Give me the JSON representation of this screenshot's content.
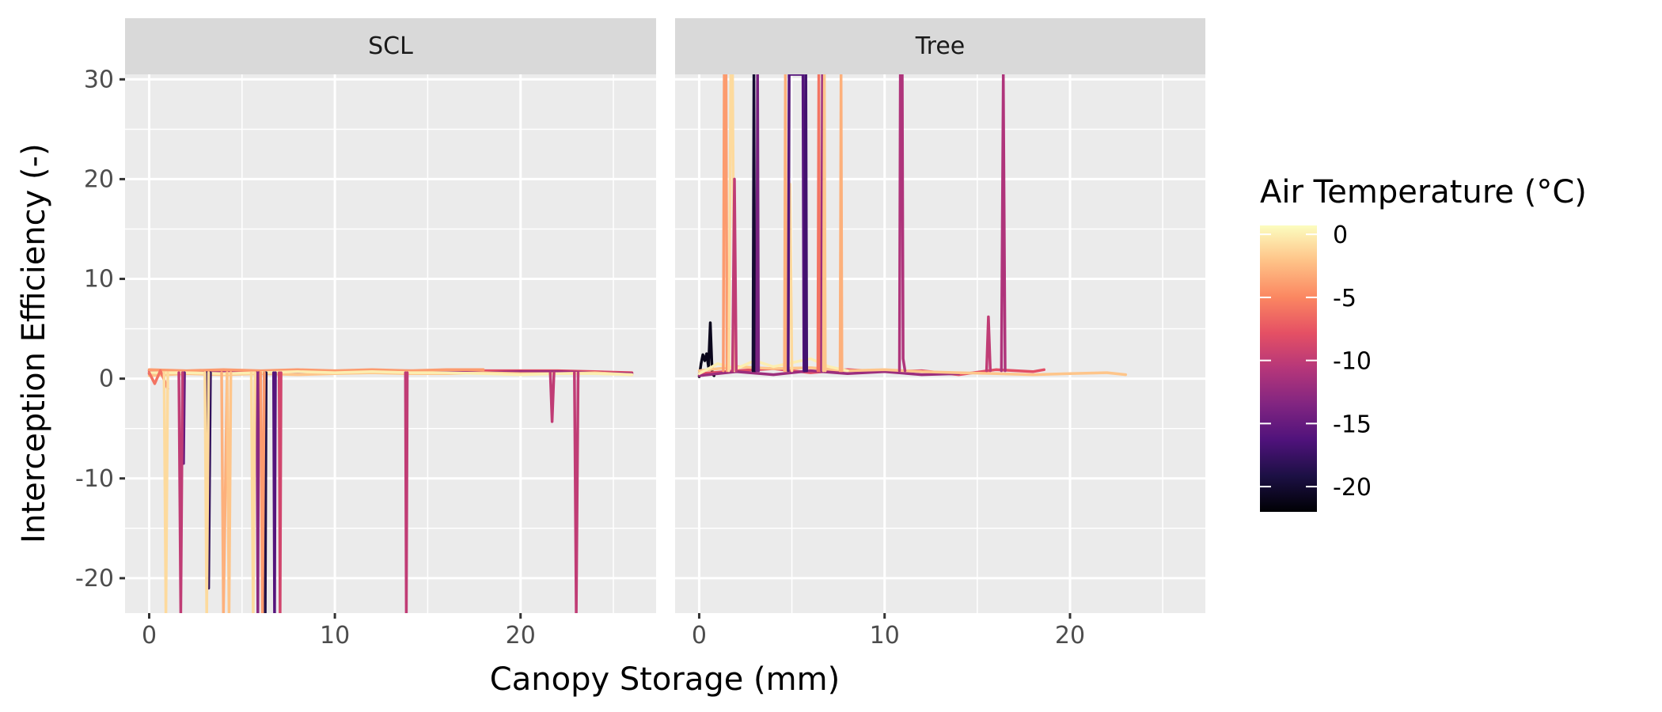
{
  "chart_data": {
    "type": "line",
    "xlabel": "Canopy Storage (mm)",
    "ylabel": "Interception Efficiency (-)",
    "xlim": [
      -1.3,
      27.3
    ],
    "ylim": [
      -23.5,
      30.5
    ],
    "x_ticks": [
      0,
      10,
      20
    ],
    "x_tick_labels": [
      "0",
      "10",
      "20"
    ],
    "y_ticks": [
      -20,
      -10,
      0,
      10,
      20,
      30
    ],
    "y_tick_labels": [
      "-20",
      "-10",
      "0",
      "10",
      "20",
      "30"
    ],
    "grid": true,
    "panel_background": "#ebebeb",
    "strip_background": "#d9d9d9",
    "legend": {
      "title": "Air Temperature (°C)",
      "placement": "right",
      "type": "colorbar",
      "palette": "magma",
      "limits": [
        -22,
        0.7
      ],
      "breaks": [
        0,
        -5,
        -10,
        -15,
        -20
      ],
      "break_labels": [
        "0",
        "-5",
        "-10",
        "-15",
        "-20"
      ]
    },
    "panels": [
      {
        "label": "SCL",
        "series": [
          {
            "temp": -8,
            "x": [
              0,
              2,
              4,
              6,
              8,
              10,
              12,
              14,
              16,
              18,
              20,
              22,
              24,
              26
            ],
            "y": [
              0.8,
              0.7,
              0.8,
              0.7,
              0.8,
              0.7,
              0.8,
              0.8,
              0.7,
              0.8,
              0.8,
              0.8,
              0.7,
              0.6
            ]
          },
          {
            "temp": -12,
            "x": [
              0,
              2,
              4,
              6,
              8,
              10,
              12,
              14,
              16,
              18,
              20,
              22,
              24,
              26
            ],
            "y": [
              0.5,
              0.6,
              0.6,
              0.5,
              0.6,
              0.7,
              0.6,
              0.6,
              0.7,
              0.6,
              0.7,
              0.7,
              0.6,
              0.5
            ]
          },
          {
            "temp": -4,
            "x": [
              0,
              2,
              4,
              6,
              8,
              10,
              12,
              14,
              16,
              18
            ],
            "y": [
              0.9,
              0.8,
              0.9,
              0.8,
              0.9,
              0.8,
              0.9,
              0.8,
              0.9,
              0.9
            ]
          },
          {
            "temp": -2,
            "x": [
              0,
              2,
              4,
              6,
              8,
              10,
              12,
              14,
              16,
              18,
              20,
              22,
              24,
              26
            ],
            "y": [
              0.3,
              0.5,
              0.4,
              0.5,
              0.4,
              0.5,
              0.6,
              0.5,
              0.5,
              0.6,
              0.5,
              0.5,
              0.6,
              0.4
            ]
          },
          {
            "temp": 0,
            "x": [
              0,
              2,
              4,
              6,
              8,
              10,
              12,
              14,
              16,
              18,
              20,
              22,
              24,
              26
            ],
            "y": [
              0.6,
              0.6,
              0.5,
              0.6,
              0.7,
              0.6,
              0.7,
              0.6,
              0.6,
              0.5,
              0.4,
              0.5,
              0.5,
              0.4
            ]
          },
          {
            "temp": -6,
            "x": [
              0,
              0.3,
              0.6,
              1
            ],
            "y": [
              0.6,
              -0.5,
              0.8,
              -1
            ]
          },
          {
            "temp": -15,
            "x": [
              1.8,
              1.85,
              1.9
            ],
            "y": [
              0.6,
              -8.5,
              0.6
            ]
          },
          {
            "temp": -10,
            "x": [
              1.6,
              1.7,
              1.8
            ],
            "y": [
              0.6,
              -23.5,
              0.6
            ]
          },
          {
            "temp": -18,
            "x": [
              3.1,
              3.2,
              3.3
            ],
            "y": [
              0.6,
              -21,
              0.6
            ]
          },
          {
            "temp": -13,
            "x": [
              5.8,
              5.85,
              5.9
            ],
            "y": [
              0.6,
              -23.5,
              0.6
            ]
          },
          {
            "temp": -19,
            "x": [
              6.2,
              6.25,
              6.3
            ],
            "y": [
              0.6,
              -23.5,
              0.6
            ]
          },
          {
            "temp": -16,
            "x": [
              6.7,
              6.75,
              6.8
            ],
            "y": [
              0.6,
              -23.5,
              0.6
            ]
          },
          {
            "temp": -9,
            "x": [
              7.0,
              7.05,
              7.1
            ],
            "y": [
              0.6,
              -23.5,
              0.6
            ]
          },
          {
            "temp": -10,
            "x": [
              13.8,
              13.85,
              13.9
            ],
            "y": [
              0.6,
              -23.5,
              0.6
            ]
          },
          {
            "temp": -10,
            "x": [
              21.6,
              21.7,
              21.8
            ],
            "y": [
              0.6,
              -4.3,
              0.6
            ]
          },
          {
            "temp": -10,
            "x": [
              22.9,
              23.0,
              23.1
            ],
            "y": [
              0.6,
              -23.5,
              0.6
            ]
          },
          {
            "temp": -1,
            "x": [
              0.8,
              0.9,
              1.0
            ],
            "y": [
              0.6,
              -23.5,
              0.6
            ]
          },
          {
            "temp": -1,
            "x": [
              3.0,
              3.1,
              3.2
            ],
            "y": [
              0.6,
              -23.5,
              0.6
            ]
          },
          {
            "temp": -3,
            "x": [
              3.9,
              4.0,
              4.2
            ],
            "y": [
              0.6,
              -23.5,
              0.6
            ]
          },
          {
            "temp": -2,
            "x": [
              4.2,
              4.3,
              4.4
            ],
            "y": [
              0.6,
              -23.5,
              0.6
            ]
          },
          {
            "temp": -1,
            "x": [
              5.5,
              5.6,
              5.7
            ],
            "y": [
              0.6,
              -23.5,
              0.6
            ]
          },
          {
            "temp": -4,
            "x": [
              6.0,
              6.1,
              6.2
            ],
            "y": [
              0.6,
              -23.5,
              0.6
            ]
          }
        ]
      },
      {
        "label": "Tree",
        "series": [
          {
            "temp": -21,
            "x": [
              0,
              0.1,
              0.2,
              0.3,
              0.4,
              0.5,
              0.6,
              0.7,
              0.8
            ],
            "y": [
              0.2,
              1.5,
              2.4,
              1.8,
              2.5,
              1.2,
              5.6,
              0.5,
              0.3
            ]
          },
          {
            "temp": -8,
            "x": [
              0,
              2,
              4,
              6,
              8,
              10,
              12,
              14,
              16,
              18,
              18.6
            ],
            "y": [
              0.5,
              0.8,
              1.0,
              0.6,
              0.9,
              0.7,
              0.8,
              0.4,
              0.9,
              0.7,
              0.9
            ]
          },
          {
            "temp": -12,
            "x": [
              0,
              2,
              4,
              6,
              8,
              10,
              12,
              14
            ],
            "y": [
              0.3,
              0.7,
              0.4,
              0.8,
              0.5,
              0.7,
              0.4,
              0.5
            ]
          },
          {
            "temp": -2,
            "x": [
              0,
              2,
              4,
              6,
              8,
              10,
              12,
              14,
              16,
              18,
              20,
              22,
              23
            ],
            "y": [
              0.8,
              1.2,
              1.0,
              1.1,
              0.8,
              0.9,
              0.7,
              0.6,
              0.5,
              0.4,
              0.5,
              0.6,
              0.4
            ]
          },
          {
            "temp": 0,
            "x": [
              0,
              1,
              2,
              3,
              4,
              5,
              6,
              7,
              8
            ],
            "y": [
              0.5,
              1.5,
              1.0,
              1.8,
              1.2,
              1.6,
              2.0,
              1.2,
              0.8
            ]
          },
          {
            "temp": -4,
            "x": [
              1.3,
              1.35,
              1.45,
              1.5
            ],
            "y": [
              0.8,
              30.5,
              30.5,
              0.8
            ]
          },
          {
            "temp": -1,
            "x": [
              1.6,
              1.7,
              1.8,
              1.9
            ],
            "y": [
              0.8,
              30.5,
              30.5,
              0.8
            ]
          },
          {
            "temp": -10,
            "x": [
              1.8,
              1.9,
              2.0
            ],
            "y": [
              0.8,
              20.0,
              0.8
            ]
          },
          {
            "temp": -20,
            "x": [
              2.9,
              2.95,
              3.0
            ],
            "y": [
              0.8,
              30.5,
              0.8
            ]
          },
          {
            "temp": -14,
            "x": [
              3.1,
              3.15,
              3.2
            ],
            "y": [
              0.8,
              30.5,
              0.8
            ]
          },
          {
            "temp": -3,
            "x": [
              4.6,
              4.65,
              4.7
            ],
            "y": [
              0.8,
              30.5,
              0.8
            ]
          },
          {
            "temp": -1,
            "x": [
              4.8,
              4.9,
              5.0
            ],
            "y": [
              0.8,
              19.5,
              0.8
            ]
          },
          {
            "temp": -16,
            "x": [
              4.8,
              4.85,
              5.6,
              5.65
            ],
            "y": [
              0.8,
              30.5,
              30.5,
              0.8
            ]
          },
          {
            "temp": -17,
            "x": [
              5.7,
              5.75,
              5.8
            ],
            "y": [
              0.8,
              30.5,
              0.8
            ]
          },
          {
            "temp": -6,
            "x": [
              6.4,
              6.45,
              6.5
            ],
            "y": [
              0.8,
              30.5,
              0.8
            ]
          },
          {
            "temp": -12,
            "x": [
              6.6,
              6.65,
              6.7
            ],
            "y": [
              0.8,
              30.5,
              0.8
            ]
          },
          {
            "temp": -2,
            "x": [
              6.7,
              6.75,
              6.8
            ],
            "y": [
              0.8,
              30.5,
              0.8
            ]
          },
          {
            "temp": -3,
            "x": [
              7.6,
              7.65,
              7.7
            ],
            "y": [
              0.8,
              30.5,
              0.8
            ]
          },
          {
            "temp": -11,
            "x": [
              10.8,
              10.85,
              10.9,
              10.95,
              11.0,
              11.1
            ],
            "y": [
              0.8,
              30.5,
              30.5,
              30.5,
              2.0,
              0.8
            ]
          },
          {
            "temp": -10,
            "x": [
              15.5,
              15.6,
              15.7
            ],
            "y": [
              0.8,
              6.2,
              0.8
            ]
          },
          {
            "temp": -11,
            "x": [
              16.3,
              16.4,
              16.5
            ],
            "y": [
              0.8,
              30.5,
              0.8
            ]
          }
        ]
      }
    ]
  }
}
